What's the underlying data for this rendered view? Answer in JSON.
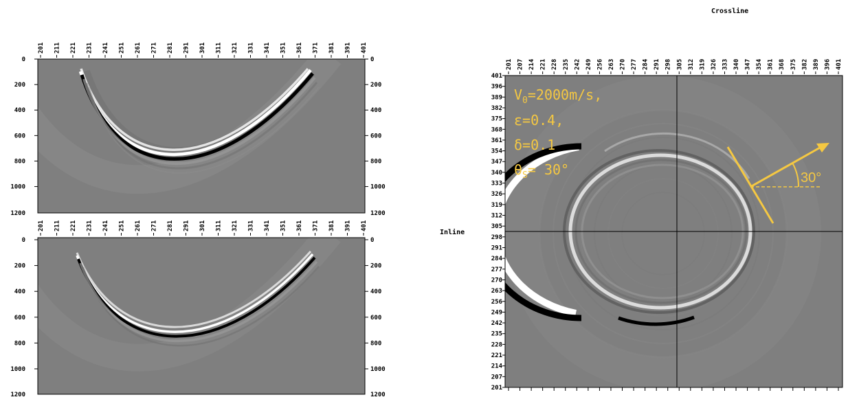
{
  "panels": {
    "top": {
      "x_ticks": [
        "201",
        "211",
        "221",
        "231",
        "241",
        "251",
        "261",
        "271",
        "281",
        "291",
        "301",
        "311",
        "321",
        "331",
        "341",
        "351",
        "361",
        "371",
        "381",
        "391",
        "401"
      ],
      "y_ticks": [
        "0",
        "200",
        "400",
        "600",
        "800",
        "1000"
      ],
      "y_clipped": "1200"
    },
    "bottom": {
      "x_ticks": [
        "201",
        "211",
        "221",
        "231",
        "241",
        "251",
        "261",
        "271",
        "281",
        "291",
        "301",
        "311",
        "321",
        "331",
        "341",
        "351",
        "361",
        "371",
        "381",
        "391",
        "401"
      ],
      "y_ticks": [
        "0",
        "200",
        "400",
        "600",
        "800",
        "1000"
      ],
      "y_clipped": "1200"
    },
    "right": {
      "title": "Crossline",
      "ylabel": "Inline",
      "x_ticks": [
        "201",
        "207",
        "214",
        "221",
        "228",
        "235",
        "242",
        "249",
        "256",
        "263",
        "270",
        "277",
        "284",
        "291",
        "298",
        "305",
        "312",
        "319",
        "326",
        "333",
        "340",
        "347",
        "354",
        "361",
        "368",
        "375",
        "382",
        "389",
        "396",
        "401"
      ],
      "y_ticks": [
        "401",
        "396",
        "389",
        "382",
        "375",
        "368",
        "361",
        "354",
        "347",
        "340",
        "333",
        "326",
        "319",
        "312",
        "305",
        "298",
        "291",
        "284",
        "277",
        "270",
        "263",
        "256",
        "249",
        "242",
        "235",
        "228",
        "221",
        "214",
        "207",
        "201"
      ],
      "annotations": {
        "v0_main": "V",
        "v0_sub": "0",
        "v0_rest": "=2000m/s,",
        "epsilon": "ε=0.4,",
        "delta": "δ=0.1",
        "theta_main": "θ",
        "theta_sub": "S",
        "theta_rest": "= 30°",
        "angle": "30°"
      },
      "annotation_color": "#f5c842"
    }
  }
}
